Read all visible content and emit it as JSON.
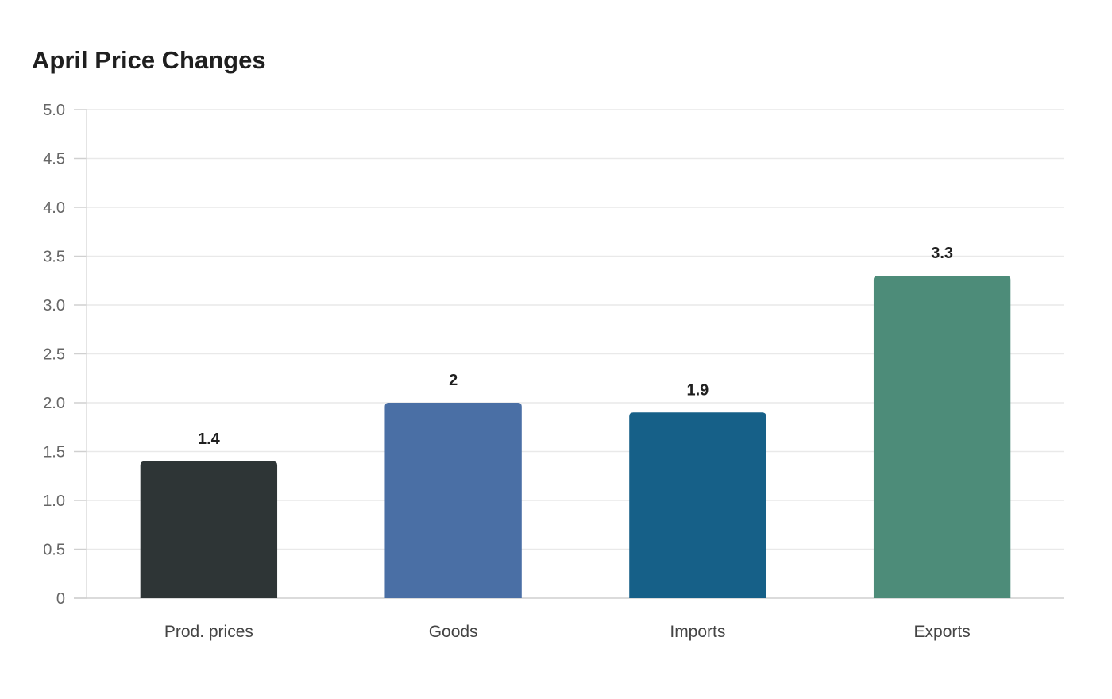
{
  "chart_data": {
    "type": "bar",
    "title": "April Price Changes",
    "xlabel": "",
    "ylabel": "",
    "categories": [
      "Prod. prices",
      "Goods",
      "Imports",
      "Exports"
    ],
    "values": [
      1.4,
      2,
      1.9,
      3.3
    ],
    "value_labels": [
      "1.4",
      "2",
      "1.9",
      "3.3"
    ],
    "colors": [
      "#2e3536",
      "#4a6fa5",
      "#166088",
      "#4d8c79"
    ],
    "ylim": [
      0,
      5
    ],
    "yticks": [
      0,
      0.5,
      1,
      1.5,
      2,
      2.5,
      3,
      3.5,
      4,
      4.5,
      5
    ],
    "ytick_labels": [
      "0",
      "0.5",
      "1.0",
      "1.5",
      "2.0",
      "2.5",
      "3.0",
      "3.5",
      "4.0",
      "4.5",
      "5.0"
    ],
    "grid": true,
    "legend": "none"
  }
}
